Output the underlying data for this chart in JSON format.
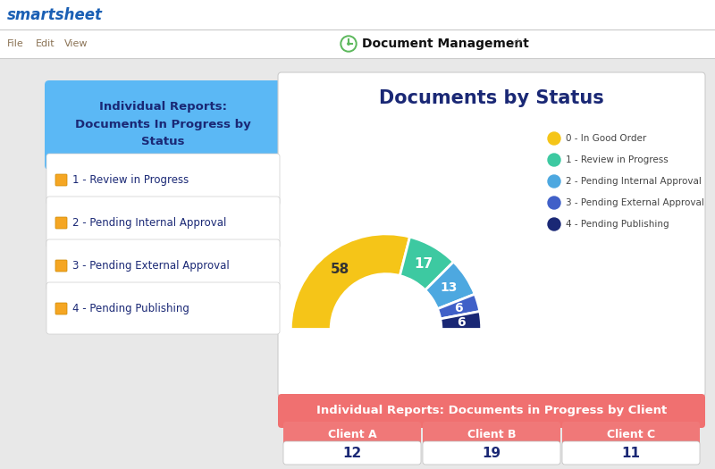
{
  "title": "Documents by Status",
  "smartsheet_text": "smartsheet",
  "menu_items": [
    "File",
    "Edit",
    "View"
  ],
  "doc_mgmt_title": "Document Management",
  "pie_values": [
    58,
    17,
    13,
    6,
    6
  ],
  "pie_colors": [
    "#F5C518",
    "#3DC9A1",
    "#4DA8E0",
    "#4060C8",
    "#1A2875"
  ],
  "pie_labels": [
    "58",
    "17",
    "13",
    "6",
    "6"
  ],
  "legend_labels": [
    "0 - In Good Order",
    "1 - Review in Progress",
    "2 - Pending Internal Approval",
    "3 - Pending External Approval",
    "4 - Pending Publishing"
  ],
  "left_panel_title": "Individual Reports:\nDocuments In Progress by\nStatus",
  "left_panel_items": [
    "1 - Review in Progress",
    "2 - Pending Internal Approval",
    "3 - Pending External Approval",
    "4 - Pending Publishing"
  ],
  "bottom_title": "Individual Reports: Documents in Progress by Client",
  "client_labels": [
    "Client A",
    "Client B",
    "Client C"
  ],
  "client_values": [
    "12",
    "19",
    "11"
  ],
  "bg_color": "#e8e8e8",
  "main_bg": "#ffffff",
  "left_header_color": "#5BB8F5",
  "left_item_header_color": "#7AC8F8",
  "bottom_header_color": "#F07070",
  "bottom_item_color": "#F07878",
  "title_color": "#1A2875",
  "left_text_color": "#1A2875",
  "menu_text_color": "#8B7355",
  "smartsheet_color": "#1a5fb4"
}
